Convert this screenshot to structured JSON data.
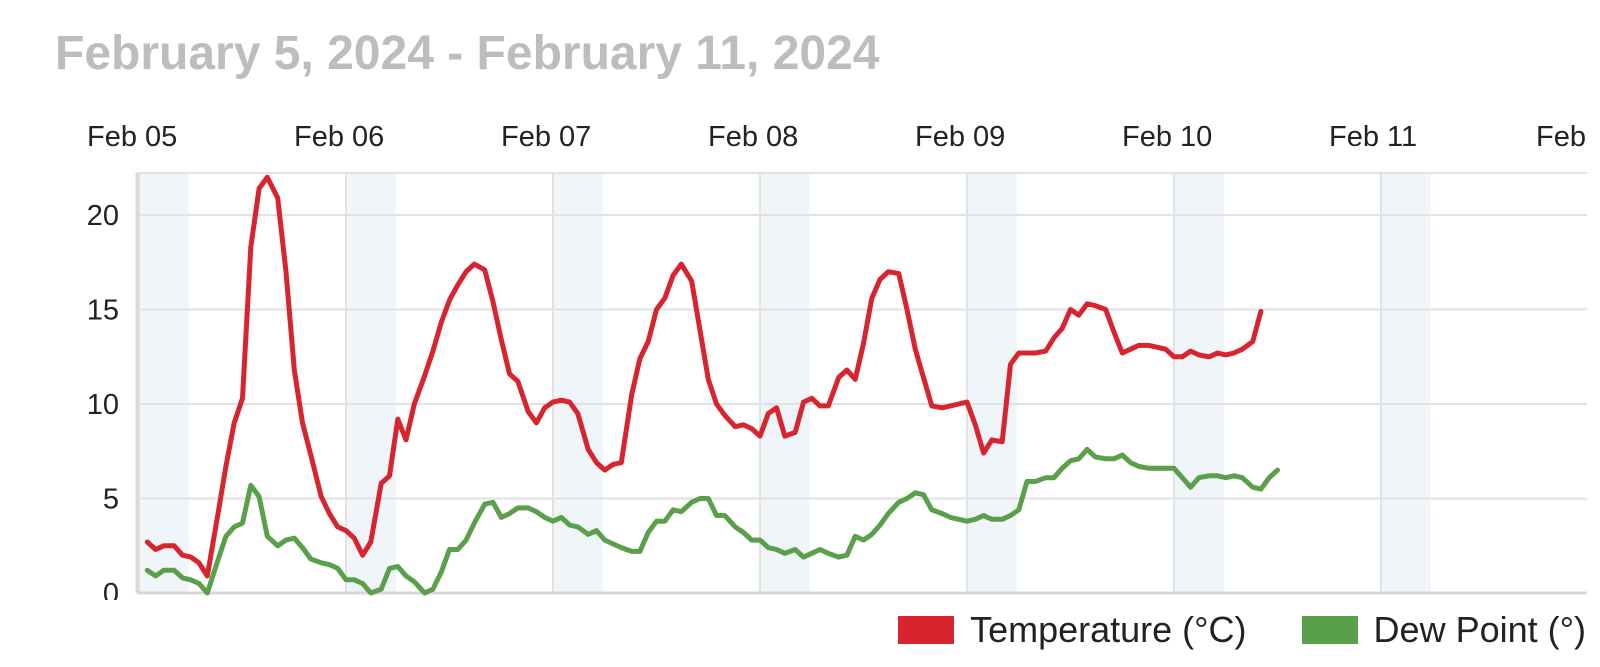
{
  "title": "February 5, 2024 - February 11, 2024",
  "colors": {
    "temperature": "#d7242e",
    "dew_point": "#5aa04a",
    "band": "#f0f5fa",
    "grid": "#e2e2e2",
    "axis": "#d8d8d8",
    "text": "#222222",
    "title": "#bdbdbd"
  },
  "chart_data": {
    "type": "line",
    "title": "February 5, 2024 - February 11, 2024",
    "xlabel": "",
    "ylabel": "",
    "x_ticks": [
      "Feb 05",
      "Feb 06",
      "Feb 07",
      "Feb 08",
      "Feb 09",
      "Feb 10",
      "Feb 11",
      "Feb"
    ],
    "x_range_days": [
      0,
      7.07
    ],
    "y_ticks": [
      0,
      5,
      10,
      15,
      20
    ],
    "ylim": [
      0,
      22
    ],
    "grid": true,
    "legend_position": "bottom-right",
    "series": [
      {
        "name": "Temperature (°C)",
        "color": "#d7242e",
        "points": [
          [
            0.04,
            2.7
          ],
          [
            0.08,
            2.3
          ],
          [
            0.12,
            2.5
          ],
          [
            0.17,
            2.5
          ],
          [
            0.21,
            2.0
          ],
          [
            0.25,
            1.9
          ],
          [
            0.29,
            1.6
          ],
          [
            0.33,
            0.9
          ],
          [
            0.38,
            4.1
          ],
          [
            0.42,
            6.7
          ],
          [
            0.46,
            9.0
          ],
          [
            0.5,
            10.3
          ],
          [
            0.54,
            18.3
          ],
          [
            0.58,
            21.4
          ],
          [
            0.62,
            22.0
          ],
          [
            0.67,
            20.9
          ],
          [
            0.71,
            17.0
          ],
          [
            0.75,
            11.8
          ],
          [
            0.79,
            9.0
          ],
          [
            0.83,
            7.3
          ],
          [
            0.88,
            5.1
          ],
          [
            0.92,
            4.2
          ],
          [
            0.96,
            3.5
          ],
          [
            1.0,
            3.3
          ],
          [
            1.04,
            2.9
          ],
          [
            1.08,
            2.0
          ],
          [
            1.12,
            2.7
          ],
          [
            1.17,
            5.8
          ],
          [
            1.21,
            6.2
          ],
          [
            1.25,
            9.2
          ],
          [
            1.29,
            8.1
          ],
          [
            1.33,
            10.0
          ],
          [
            1.38,
            11.5
          ],
          [
            1.42,
            12.8
          ],
          [
            1.46,
            14.3
          ],
          [
            1.5,
            15.5
          ],
          [
            1.54,
            16.3
          ],
          [
            1.58,
            17.0
          ],
          [
            1.62,
            17.4
          ],
          [
            1.67,
            17.1
          ],
          [
            1.71,
            15.4
          ],
          [
            1.75,
            13.4
          ],
          [
            1.79,
            11.6
          ],
          [
            1.83,
            11.2
          ],
          [
            1.88,
            9.6
          ],
          [
            1.92,
            9.0
          ],
          [
            1.96,
            9.8
          ],
          [
            2.0,
            10.1
          ],
          [
            2.04,
            10.2
          ],
          [
            2.08,
            10.1
          ],
          [
            2.12,
            9.5
          ],
          [
            2.17,
            7.6
          ],
          [
            2.21,
            6.9
          ],
          [
            2.25,
            6.5
          ],
          [
            2.29,
            6.8
          ],
          [
            2.33,
            6.9
          ],
          [
            2.38,
            10.5
          ],
          [
            2.42,
            12.4
          ],
          [
            2.46,
            13.3
          ],
          [
            2.5,
            15.0
          ],
          [
            2.54,
            15.6
          ],
          [
            2.58,
            16.8
          ],
          [
            2.62,
            17.4
          ],
          [
            2.67,
            16.5
          ],
          [
            2.71,
            13.9
          ],
          [
            2.75,
            11.3
          ],
          [
            2.79,
            10.0
          ],
          [
            2.83,
            9.4
          ],
          [
            2.88,
            8.8
          ],
          [
            2.92,
            8.9
          ],
          [
            2.96,
            8.7
          ],
          [
            3.0,
            8.3
          ],
          [
            3.04,
            9.5
          ],
          [
            3.08,
            9.8
          ],
          [
            3.12,
            8.3
          ],
          [
            3.17,
            8.5
          ],
          [
            3.21,
            10.1
          ],
          [
            3.25,
            10.3
          ],
          [
            3.29,
            9.9
          ],
          [
            3.33,
            9.9
          ],
          [
            3.38,
            11.4
          ],
          [
            3.42,
            11.8
          ],
          [
            3.46,
            11.3
          ],
          [
            3.5,
            13.2
          ],
          [
            3.54,
            15.6
          ],
          [
            3.58,
            16.6
          ],
          [
            3.62,
            17.0
          ],
          [
            3.67,
            16.9
          ],
          [
            3.71,
            15.0
          ],
          [
            3.75,
            12.9
          ],
          [
            3.79,
            11.4
          ],
          [
            3.83,
            9.9
          ],
          [
            3.88,
            9.8
          ],
          [
            3.92,
            9.9
          ],
          [
            3.96,
            10.0
          ],
          [
            4.0,
            10.1
          ],
          [
            4.04,
            8.9
          ],
          [
            4.08,
            7.4
          ],
          [
            4.12,
            8.1
          ],
          [
            4.17,
            8.0
          ],
          [
            4.21,
            12.1
          ],
          [
            4.25,
            12.7
          ],
          [
            4.29,
            12.7
          ],
          [
            4.33,
            12.7
          ],
          [
            4.38,
            12.8
          ],
          [
            4.42,
            13.5
          ],
          [
            4.46,
            14.0
          ],
          [
            4.5,
            15.0
          ],
          [
            4.54,
            14.7
          ],
          [
            4.58,
            15.3
          ],
          [
            4.62,
            15.2
          ],
          [
            4.67,
            15.0
          ],
          [
            4.71,
            13.8
          ],
          [
            4.75,
            12.7
          ],
          [
            4.79,
            12.9
          ],
          [
            4.83,
            13.1
          ],
          [
            4.88,
            13.1
          ],
          [
            4.92,
            13.0
          ],
          [
            4.96,
            12.9
          ],
          [
            5.0,
            12.5
          ],
          [
            5.04,
            12.5
          ],
          [
            5.08,
            12.8
          ],
          [
            5.12,
            12.6
          ],
          [
            5.17,
            12.5
          ],
          [
            5.21,
            12.7
          ],
          [
            5.25,
            12.6
          ],
          [
            5.29,
            12.7
          ],
          [
            5.33,
            12.9
          ],
          [
            5.38,
            13.3
          ],
          [
            5.42,
            14.9
          ]
        ]
      },
      {
        "name": "Dew Point (°)",
        "color": "#5aa04a",
        "points": [
          [
            0.04,
            1.2
          ],
          [
            0.08,
            0.9
          ],
          [
            0.12,
            1.2
          ],
          [
            0.17,
            1.2
          ],
          [
            0.21,
            0.8
          ],
          [
            0.25,
            0.7
          ],
          [
            0.29,
            0.5
          ],
          [
            0.33,
            0.0
          ],
          [
            0.38,
            1.7
          ],
          [
            0.42,
            3.0
          ],
          [
            0.46,
            3.5
          ],
          [
            0.5,
            3.7
          ],
          [
            0.54,
            5.7
          ],
          [
            0.58,
            5.1
          ],
          [
            0.62,
            3.0
          ],
          [
            0.67,
            2.5
          ],
          [
            0.71,
            2.8
          ],
          [
            0.75,
            2.9
          ],
          [
            0.79,
            2.4
          ],
          [
            0.83,
            1.8
          ],
          [
            0.88,
            1.6
          ],
          [
            0.92,
            1.5
          ],
          [
            0.96,
            1.3
          ],
          [
            1.0,
            0.7
          ],
          [
            1.04,
            0.7
          ],
          [
            1.08,
            0.5
          ],
          [
            1.12,
            0.0
          ],
          [
            1.17,
            0.2
          ],
          [
            1.21,
            1.3
          ],
          [
            1.25,
            1.4
          ],
          [
            1.29,
            0.9
          ],
          [
            1.33,
            0.6
          ],
          [
            1.38,
            0.0
          ],
          [
            1.42,
            0.2
          ],
          [
            1.46,
            1.1
          ],
          [
            1.5,
            2.3
          ],
          [
            1.54,
            2.3
          ],
          [
            1.58,
            2.8
          ],
          [
            1.62,
            3.7
          ],
          [
            1.67,
            4.7
          ],
          [
            1.71,
            4.8
          ],
          [
            1.75,
            4.0
          ],
          [
            1.79,
            4.2
          ],
          [
            1.83,
            4.5
          ],
          [
            1.88,
            4.5
          ],
          [
            1.92,
            4.3
          ],
          [
            1.96,
            4.0
          ],
          [
            2.0,
            3.8
          ],
          [
            2.04,
            4.0
          ],
          [
            2.08,
            3.6
          ],
          [
            2.12,
            3.5
          ],
          [
            2.17,
            3.1
          ],
          [
            2.21,
            3.3
          ],
          [
            2.25,
            2.8
          ],
          [
            2.29,
            2.6
          ],
          [
            2.33,
            2.4
          ],
          [
            2.38,
            2.2
          ],
          [
            2.42,
            2.2
          ],
          [
            2.46,
            3.2
          ],
          [
            2.5,
            3.8
          ],
          [
            2.54,
            3.8
          ],
          [
            2.58,
            4.4
          ],
          [
            2.62,
            4.3
          ],
          [
            2.67,
            4.8
          ],
          [
            2.71,
            5.0
          ],
          [
            2.75,
            5.0
          ],
          [
            2.79,
            4.1
          ],
          [
            2.83,
            4.1
          ],
          [
            2.88,
            3.5
          ],
          [
            2.92,
            3.2
          ],
          [
            2.96,
            2.8
          ],
          [
            3.0,
            2.8
          ],
          [
            3.04,
            2.4
          ],
          [
            3.08,
            2.3
          ],
          [
            3.12,
            2.1
          ],
          [
            3.17,
            2.3
          ],
          [
            3.21,
            1.9
          ],
          [
            3.25,
            2.1
          ],
          [
            3.29,
            2.3
          ],
          [
            3.33,
            2.1
          ],
          [
            3.38,
            1.9
          ],
          [
            3.42,
            2.0
          ],
          [
            3.46,
            3.0
          ],
          [
            3.5,
            2.8
          ],
          [
            3.54,
            3.1
          ],
          [
            3.58,
            3.6
          ],
          [
            3.62,
            4.2
          ],
          [
            3.67,
            4.8
          ],
          [
            3.71,
            5.0
          ],
          [
            3.75,
            5.3
          ],
          [
            3.79,
            5.2
          ],
          [
            3.83,
            4.4
          ],
          [
            3.88,
            4.2
          ],
          [
            3.92,
            4.0
          ],
          [
            3.96,
            3.9
          ],
          [
            4.0,
            3.8
          ],
          [
            4.04,
            3.9
          ],
          [
            4.08,
            4.1
          ],
          [
            4.12,
            3.9
          ],
          [
            4.17,
            3.9
          ],
          [
            4.21,
            4.1
          ],
          [
            4.25,
            4.4
          ],
          [
            4.29,
            5.9
          ],
          [
            4.33,
            5.9
          ],
          [
            4.38,
            6.1
          ],
          [
            4.42,
            6.1
          ],
          [
            4.46,
            6.6
          ],
          [
            4.5,
            7.0
          ],
          [
            4.54,
            7.1
          ],
          [
            4.58,
            7.6
          ],
          [
            4.62,
            7.2
          ],
          [
            4.67,
            7.1
          ],
          [
            4.71,
            7.1
          ],
          [
            4.75,
            7.3
          ],
          [
            4.79,
            6.9
          ],
          [
            4.83,
            6.7
          ],
          [
            4.88,
            6.6
          ],
          [
            4.92,
            6.6
          ],
          [
            4.96,
            6.6
          ],
          [
            5.0,
            6.6
          ],
          [
            5.04,
            6.1
          ],
          [
            5.08,
            5.6
          ],
          [
            5.12,
            6.1
          ],
          [
            5.17,
            6.2
          ],
          [
            5.21,
            6.2
          ],
          [
            5.25,
            6.1
          ],
          [
            5.29,
            6.2
          ],
          [
            5.33,
            6.1
          ],
          [
            5.38,
            5.6
          ],
          [
            5.42,
            5.5
          ],
          [
            5.46,
            6.1
          ],
          [
            5.5,
            6.5
          ]
        ]
      }
    ]
  },
  "legend": [
    {
      "label": "Temperature (°C)",
      "color": "#d7242e"
    },
    {
      "label": "Dew Point (°)",
      "color": "#5aa04a"
    }
  ]
}
